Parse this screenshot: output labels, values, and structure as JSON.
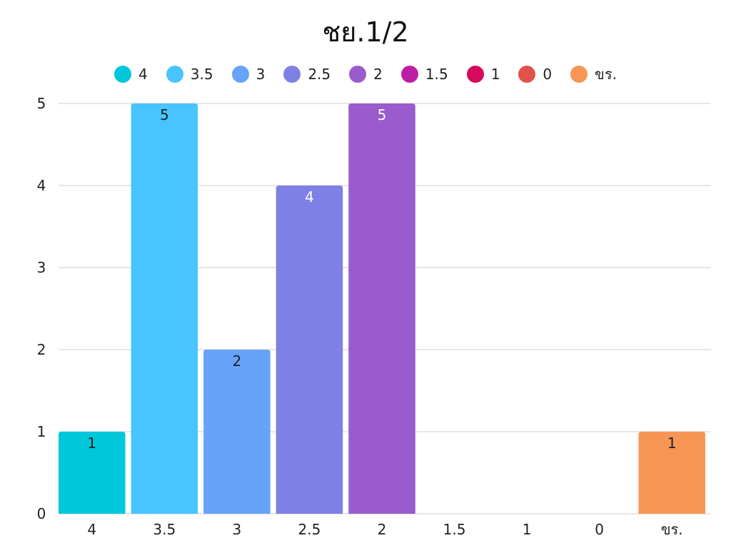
{
  "chart_data": {
    "type": "bar",
    "title": "ชย.1/2",
    "xlabel": "",
    "ylabel": "",
    "categories": [
      "4",
      "3.5",
      "3",
      "2.5",
      "2",
      "1.5",
      "1",
      "0",
      "ขร."
    ],
    "values": [
      1,
      5,
      2,
      4,
      5,
      0,
      0,
      0,
      1
    ],
    "colors": [
      "#00C7DB",
      "#48C4FF",
      "#66A3F9",
      "#7F80E6",
      "#9A5BCD",
      "#BD1FA3",
      "#D6095A",
      "#E0524A",
      "#F79654"
    ],
    "label_colors": [
      "#222222",
      "#222222",
      "#222222",
      "#ffffff",
      "#ffffff",
      "#222222",
      "#222222",
      "#222222",
      "#222222"
    ],
    "ylim": [
      0,
      5
    ],
    "yticks": [
      "0",
      "1",
      "2",
      "3",
      "4",
      "5"
    ],
    "grid": true,
    "legend_position": "top"
  }
}
